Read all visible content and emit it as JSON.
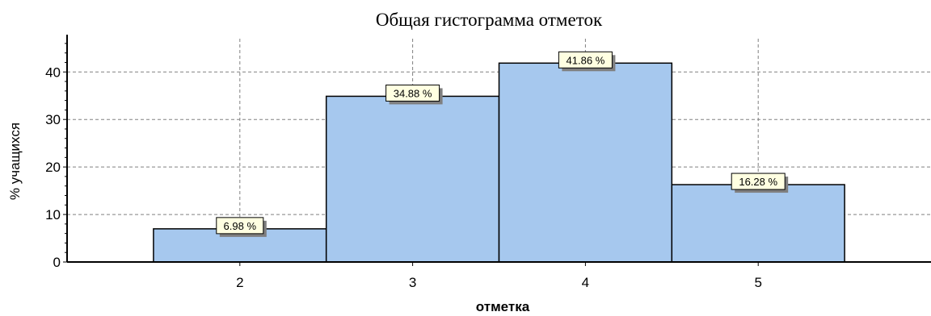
{
  "chart_data": {
    "type": "bar",
    "title": "Общая гистограмма отметок",
    "xlabel": "отметка",
    "ylabel": "% учащихся",
    "categories": [
      "2",
      "3",
      "4",
      "5"
    ],
    "values": [
      6.98,
      34.88,
      41.86,
      16.28
    ],
    "data_labels": [
      "6.98 %",
      "34.88 %",
      "41.86 %",
      "16.28 %"
    ],
    "ylim": [
      0,
      47
    ],
    "yticks": [
      0,
      10,
      20,
      30,
      40
    ],
    "grid": true,
    "colors": {
      "bar_fill": "#a6c8ee",
      "bar_stroke": "#000000",
      "label_bg": "#ffffe1",
      "label_shadow": "#7f7f7f",
      "grid": "#808080"
    }
  }
}
